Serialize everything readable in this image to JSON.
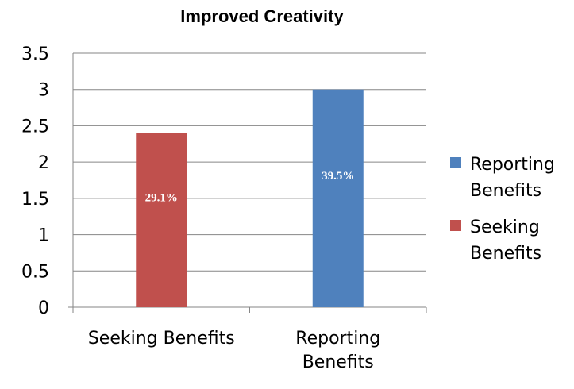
{
  "chart_data": {
    "type": "bar",
    "title": "Improved Creativity",
    "categories": [
      [
        "Seeking Benefits"
      ],
      [
        "Reporting",
        "Benefits"
      ]
    ],
    "values": [
      2.4,
      3.0
    ],
    "bar_colors": [
      "#c0504d",
      "#4f81bd"
    ],
    "data_labels": [
      "29.1%",
      "39.5%"
    ],
    "ylim": [
      0,
      3.5
    ],
    "yticks": [
      "0",
      "0.5",
      "1",
      "1.5",
      "2",
      "2.5",
      "3",
      "3.5"
    ],
    "grid": true,
    "legend_position": "right",
    "legend": [
      {
        "lines": [
          "Reporting",
          "Benefits"
        ],
        "color": "#4f81bd"
      },
      {
        "lines": [
          "Seeking",
          "Benefits"
        ],
        "color": "#c0504d"
      }
    ]
  }
}
